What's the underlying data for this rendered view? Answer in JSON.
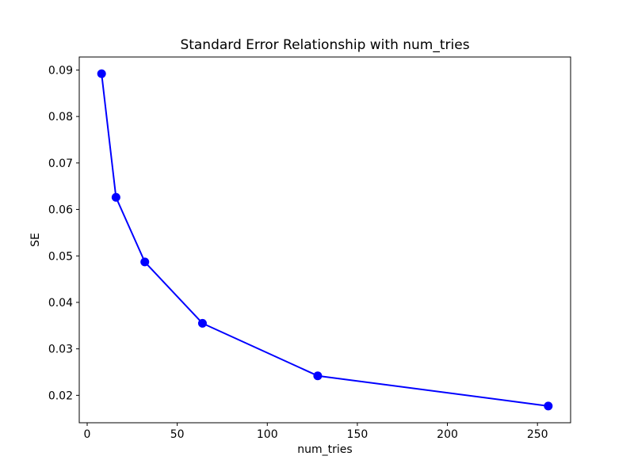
{
  "chart_data": {
    "type": "line",
    "title": "Standard Error Relationship with num_tries",
    "xlabel": "num_tries",
    "ylabel": "SE",
    "x": [
      8,
      16,
      32,
      64,
      128,
      256
    ],
    "y": [
      0.0892,
      0.0626,
      0.0487,
      0.0355,
      0.0242,
      0.0177
    ],
    "series_color": "#0000ff",
    "marker": "circle",
    "xticks": [
      0,
      50,
      100,
      150,
      200,
      250
    ],
    "yticks": [
      0.02,
      0.03,
      0.04,
      0.05,
      0.06,
      0.07,
      0.08,
      0.09
    ],
    "xlim": [
      -4.4,
      268.4
    ],
    "ylim": [
      0.0141,
      0.0928
    ],
    "grid": false,
    "legend_position": "none",
    "frame_color": "#000000",
    "background_color": "#ffffff"
  }
}
